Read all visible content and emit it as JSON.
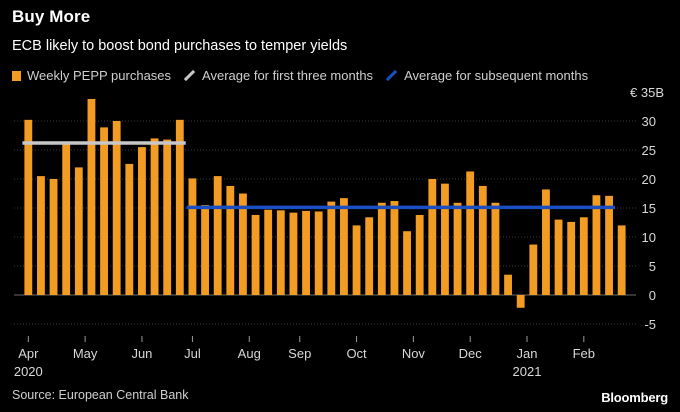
{
  "chart_data": {
    "type": "bar",
    "title": "Buy More",
    "subtitle": "ECB likely to boost bond purchases to temper yields",
    "unit_label": "€ 35B",
    "ylim": [
      -7,
      35
    ],
    "yticks": [
      30,
      25,
      20,
      15,
      10,
      5,
      0,
      -5
    ],
    "grid": true,
    "legend_position": "top-left",
    "legend": [
      {
        "label": "Weekly PEPP purchases",
        "color": "#f39c24"
      },
      {
        "label": "Average for first three months",
        "color": "#c8c8c8"
      },
      {
        "label": "Average for subsequent months",
        "color": "#1a4fc4"
      }
    ],
    "series": [
      {
        "name": "Weekly PEPP purchases",
        "color": "#f39c24",
        "values": [
          30.2,
          20.5,
          20.0,
          26.1,
          22.0,
          33.8,
          28.9,
          30.0,
          22.6,
          25.5,
          27.0,
          26.8,
          30.2,
          20.1,
          15.5,
          20.5,
          18.8,
          17.5,
          13.8,
          14.7,
          14.6,
          14.2,
          14.5,
          14.4,
          16.1,
          16.7,
          12.0,
          13.4,
          15.9,
          16.2,
          11.0,
          13.8,
          20.0,
          19.2,
          15.9,
          21.3,
          18.8,
          15.9,
          3.5,
          -2.2,
          8.7,
          18.2,
          13.0,
          12.6,
          13.4,
          17.2,
          17.1,
          12.0
        ]
      }
    ],
    "averages": [
      {
        "name": "Average for first three months",
        "value": 26.2,
        "start_index": 0,
        "end_index": 12,
        "color": "#c8c8c8"
      },
      {
        "name": "Average for subsequent months",
        "value": 15.1,
        "start_index": 13,
        "end_index": 46,
        "color": "#1a4fc4"
      }
    ],
    "x_labels": [
      {
        "label": "Apr",
        "index": 0
      },
      {
        "label": "May",
        "index": 4.5
      },
      {
        "label": "Jun",
        "index": 9
      },
      {
        "label": "Jul",
        "index": 13
      },
      {
        "label": "Aug",
        "index": 17.5
      },
      {
        "label": "Sep",
        "index": 21.5
      },
      {
        "label": "Oct",
        "index": 26
      },
      {
        "label": "Nov",
        "index": 30.5
      },
      {
        "label": "Dec",
        "index": 35
      },
      {
        "label": "Jan",
        "index": 39.5
      },
      {
        "label": "Feb",
        "index": 44
      }
    ],
    "year_labels": [
      {
        "label": "2020",
        "index": 0
      },
      {
        "label": "2021",
        "index": 39.5
      }
    ]
  },
  "footer": {
    "source": "Source: European Central Bank",
    "brand": "Bloomberg"
  }
}
